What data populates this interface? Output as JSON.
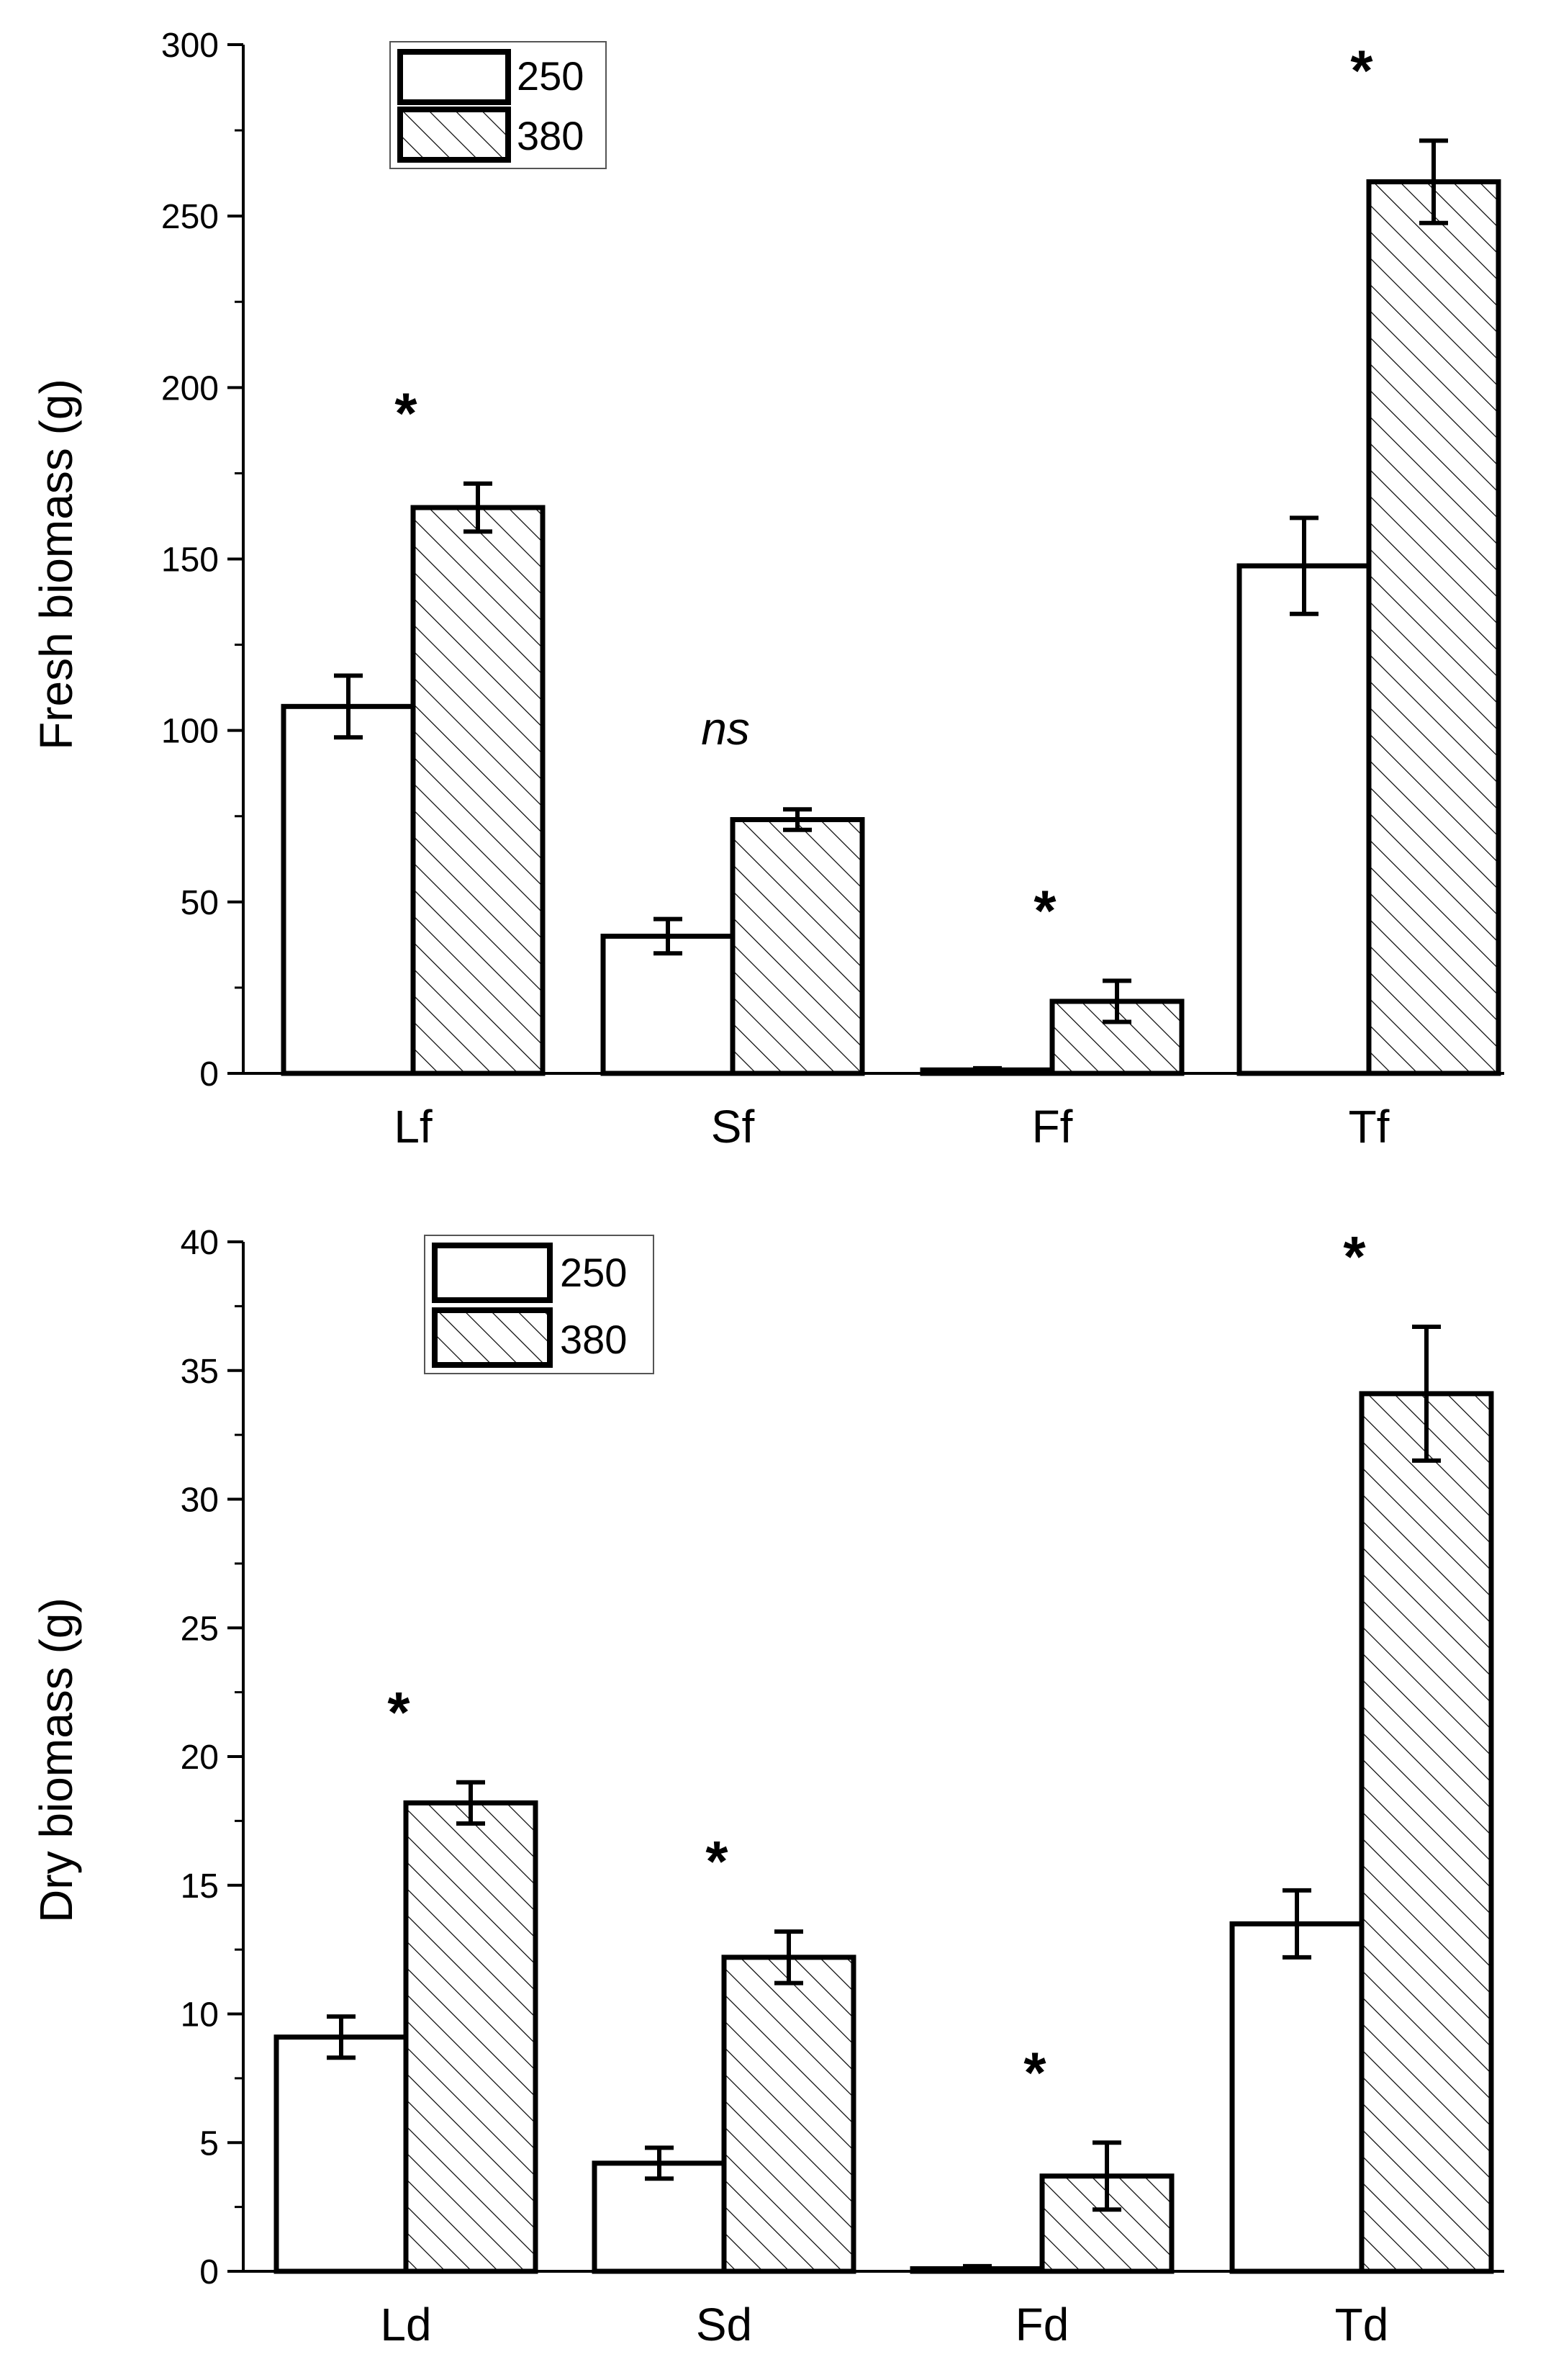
{
  "chart_data": [
    {
      "type": "bar",
      "ylabel": "Fresh biomass (g)",
      "xlabel": "",
      "ylim": [
        0,
        300
      ],
      "yticks": [
        0,
        50,
        100,
        150,
        200,
        250,
        300
      ],
      "categories": [
        "Lf",
        "Sf",
        "Ff",
        "Tf"
      ],
      "series": [
        {
          "name": "250",
          "pattern": "solid-white",
          "values": [
            107,
            40,
            1,
            148
          ],
          "errors": [
            9,
            5,
            0.5,
            14
          ]
        },
        {
          "name": "380",
          "pattern": "hatched",
          "values": [
            165,
            74,
            21,
            260
          ],
          "errors": [
            7,
            3,
            6,
            12
          ]
        }
      ],
      "significance": [
        "*",
        "ns",
        "*",
        "*"
      ],
      "legend": {
        "position": "top-left",
        "entries": [
          "250",
          "380"
        ]
      },
      "grid": false
    },
    {
      "type": "bar",
      "ylabel": "Dry biomass (g)",
      "xlabel": "",
      "ylim": [
        0,
        40
      ],
      "yticks": [
        0,
        5,
        10,
        15,
        20,
        25,
        30,
        35,
        40
      ],
      "categories": [
        "Ld",
        "Sd",
        "Fd",
        "Td"
      ],
      "series": [
        {
          "name": "250",
          "pattern": "solid-white",
          "values": [
            9.1,
            4.2,
            0.1,
            13.5
          ],
          "errors": [
            0.8,
            0.6,
            0.1,
            1.3
          ]
        },
        {
          "name": "380",
          "pattern": "hatched",
          "values": [
            18.2,
            12.2,
            3.7,
            34.1
          ],
          "errors": [
            0.8,
            1.0,
            1.3,
            2.6
          ]
        }
      ],
      "significance": [
        "*",
        "*",
        "*",
        "*"
      ],
      "legend": {
        "position": "top-left",
        "entries": [
          "250",
          "380"
        ]
      },
      "grid": false
    }
  ]
}
